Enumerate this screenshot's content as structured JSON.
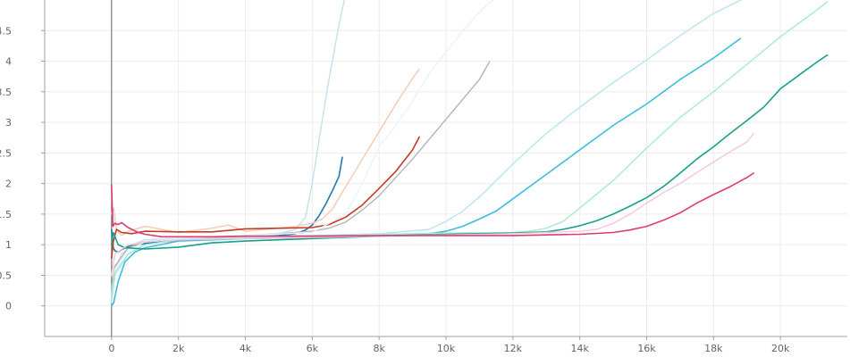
{
  "chart_data": {
    "type": "line",
    "title": "",
    "xlabel": "",
    "ylabel": "",
    "xlim": [
      -2000,
      22000
    ],
    "ylim": [
      -0.5,
      5.0
    ],
    "x_ticks": [
      {
        "value": 0,
        "label": "0"
      },
      {
        "value": 2000,
        "label": "2k"
      },
      {
        "value": 4000,
        "label": "4k"
      },
      {
        "value": 6000,
        "label": "6k"
      },
      {
        "value": 8000,
        "label": "8k"
      },
      {
        "value": 10000,
        "label": "10k"
      },
      {
        "value": 12000,
        "label": "12k"
      },
      {
        "value": 14000,
        "label": "14k"
      },
      {
        "value": 16000,
        "label": "16k"
      },
      {
        "value": 18000,
        "label": "18k"
      },
      {
        "value": 20000,
        "label": "20k"
      }
    ],
    "y_ticks": [
      {
        "value": 0,
        "label": "0"
      },
      {
        "value": 0.5,
        "label": "0.5"
      },
      {
        "value": 1,
        "label": "1"
      },
      {
        "value": 1.5,
        "label": "1.5"
      },
      {
        "value": 2,
        "label": "2"
      },
      {
        "value": 2.5,
        "label": "2.5"
      },
      {
        "value": 3,
        "label": "3"
      },
      {
        "value": 3.5,
        "label": "3.5"
      },
      {
        "value": 4,
        "label": "4"
      },
      {
        "value": 4.5,
        "label": "4.5"
      }
    ],
    "grid": true,
    "legend": "none",
    "series": [
      {
        "color": "#c6dff0",
        "width": 1.4,
        "x": [
          0,
          100,
          300,
          600,
          1000,
          2000,
          3000,
          4000,
          5000,
          5500,
          5800,
          6000,
          6200,
          6500,
          6800,
          7000
        ],
        "y": [
          0.2,
          0.6,
          0.85,
          1.0,
          1.08,
          1.1,
          1.12,
          1.14,
          1.18,
          1.25,
          1.45,
          2.0,
          2.7,
          3.7,
          4.6,
          5.1
        ]
      },
      {
        "color": "#1f78b4",
        "width": 1.6,
        "x": [
          0,
          50,
          100,
          200,
          300,
          500,
          1000,
          2000,
          3000,
          4000,
          5000,
          5500,
          5800,
          6000,
          6200,
          6400,
          6600,
          6800,
          6900
        ],
        "y": [
          1.25,
          0.95,
          0.9,
          0.88,
          0.92,
          0.97,
          1.02,
          1.07,
          1.09,
          1.12,
          1.15,
          1.18,
          1.24,
          1.32,
          1.47,
          1.66,
          1.88,
          2.12,
          2.43
        ]
      },
      {
        "color": "#f5c9b4",
        "width": 1.4,
        "x": [
          0,
          60,
          150,
          300,
          500,
          1000,
          2000,
          3000,
          3500,
          4000,
          5000,
          5500,
          6000,
          6300,
          6600,
          7000,
          7500,
          8000,
          8500,
          9000,
          9200
        ],
        "y": [
          1.5,
          1.6,
          1.25,
          1.15,
          1.22,
          1.3,
          1.2,
          1.27,
          1.32,
          1.22,
          1.27,
          1.3,
          1.35,
          1.42,
          1.58,
          1.95,
          2.4,
          2.85,
          3.3,
          3.72,
          3.87
        ]
      },
      {
        "color": "#c23b22",
        "width": 1.6,
        "x": [
          0,
          50,
          150,
          300,
          600,
          1000,
          2000,
          3000,
          4000,
          5000,
          6000,
          6500,
          7000,
          7500,
          8000,
          8500,
          9000,
          9200
        ],
        "y": [
          0.78,
          1.05,
          1.25,
          1.2,
          1.18,
          1.22,
          1.21,
          1.21,
          1.26,
          1.27,
          1.28,
          1.33,
          1.45,
          1.65,
          1.92,
          2.2,
          2.55,
          2.76
        ]
      },
      {
        "color": "#b3b3b3",
        "width": 1.4,
        "x": [
          0,
          100,
          500,
          1000,
          2000,
          3000,
          4000,
          5000,
          6000,
          6500,
          7000,
          7500,
          8000,
          9000,
          10000,
          11000,
          11300
        ],
        "y": [
          0.3,
          0.65,
          0.95,
          1.05,
          1.1,
          1.12,
          1.15,
          1.18,
          1.22,
          1.27,
          1.37,
          1.57,
          1.8,
          2.4,
          3.05,
          3.7,
          3.99
        ]
      },
      {
        "color": "#eaf3f8",
        "width": 1.4,
        "x": [
          0,
          100,
          500,
          1000,
          2000,
          4000,
          6000,
          7000,
          7500,
          8000,
          8500,
          9000,
          9500,
          10000,
          10500,
          11000,
          11500
        ],
        "y": [
          0.1,
          0.6,
          0.9,
          1.05,
          1.1,
          1.15,
          1.2,
          1.5,
          2.0,
          2.6,
          2.95,
          3.35,
          3.8,
          4.15,
          4.5,
          4.8,
          5.05
        ]
      },
      {
        "color": "#b9e4f4",
        "width": 1.4,
        "x": [
          0,
          100,
          500,
          1000,
          2000,
          4000,
          6000,
          8000,
          9500,
          10000,
          10500,
          11000,
          11500,
          12000,
          13000,
          14000,
          15000,
          16000,
          17000,
          18000,
          19000
        ],
        "y": [
          0.05,
          0.5,
          0.85,
          1.0,
          1.08,
          1.12,
          1.15,
          1.18,
          1.25,
          1.38,
          1.55,
          1.78,
          2.05,
          2.32,
          2.82,
          3.25,
          3.65,
          4.02,
          4.42,
          4.78,
          5.05
        ]
      },
      {
        "color": "#3cbde0",
        "width": 1.6,
        "x": [
          0,
          60,
          200,
          400,
          700,
          1000,
          2000,
          4000,
          6000,
          8000,
          9500,
          10000,
          10500,
          11000,
          11500,
          12000,
          13000,
          14000,
          15000,
          16000,
          17000,
          18000,
          18800
        ],
        "y": [
          0.0,
          0.05,
          0.4,
          0.72,
          0.88,
          0.95,
          1.06,
          1.1,
          1.12,
          1.15,
          1.18,
          1.22,
          1.3,
          1.42,
          1.55,
          1.75,
          2.15,
          2.55,
          2.95,
          3.3,
          3.7,
          4.05,
          4.37
        ]
      },
      {
        "color": "#a7ead0",
        "width": 1.4,
        "x": [
          0,
          100,
          500,
          1000,
          2000,
          4000,
          6000,
          8000,
          10000,
          12000,
          12500,
          13000,
          13500,
          14000,
          15000,
          16000,
          17000,
          18000,
          19000,
          20000,
          21000,
          21400
        ],
        "y": [
          0.15,
          0.55,
          0.85,
          1.0,
          1.08,
          1.12,
          1.15,
          1.17,
          1.19,
          1.2,
          1.22,
          1.27,
          1.38,
          1.6,
          2.05,
          2.58,
          3.08,
          3.5,
          3.95,
          4.4,
          4.8,
          4.97
        ]
      },
      {
        "color": "#17a08a",
        "width": 1.6,
        "x": [
          0,
          50,
          200,
          400,
          1000,
          2000,
          3000,
          4000,
          6000,
          8000,
          10000,
          12000,
          13000,
          13500,
          14000,
          14500,
          15000,
          15500,
          16000,
          16500,
          17000,
          17500,
          18000,
          18500,
          19000,
          19500,
          20000,
          20500,
          21000,
          21400
        ],
        "y": [
          1.0,
          1.2,
          1.0,
          0.95,
          0.93,
          0.96,
          1.03,
          1.06,
          1.1,
          1.14,
          1.17,
          1.19,
          1.21,
          1.25,
          1.31,
          1.39,
          1.5,
          1.63,
          1.77,
          1.95,
          2.17,
          2.4,
          2.6,
          2.82,
          3.03,
          3.25,
          3.55,
          3.75,
          3.95,
          4.1
        ]
      },
      {
        "color": "#f6c7d9",
        "width": 1.4,
        "x": [
          0,
          100,
          500,
          1000,
          2000,
          4000,
          6000,
          8000,
          10000,
          12000,
          13000,
          14000,
          14500,
          15000,
          15500,
          16000,
          16500,
          17000,
          17500,
          18000,
          18500,
          19000,
          19200
        ],
        "y": [
          0.5,
          0.85,
          1.0,
          1.05,
          1.08,
          1.1,
          1.12,
          1.14,
          1.16,
          1.18,
          1.2,
          1.22,
          1.25,
          1.35,
          1.5,
          1.68,
          1.85,
          2.0,
          2.18,
          2.35,
          2.52,
          2.68,
          2.82
        ]
      },
      {
        "color": "#dd3a7a",
        "width": 1.6,
        "x": [
          0,
          40,
          100,
          200,
          300,
          500,
          800,
          1000,
          1500,
          2000,
          3000,
          4000,
          6000,
          8000,
          10000,
          12000,
          14000,
          15000,
          15500,
          16000,
          16500,
          17000,
          17500,
          18000,
          18500,
          19000,
          19200
        ],
        "y": [
          1.98,
          1.3,
          1.35,
          1.33,
          1.36,
          1.28,
          1.2,
          1.17,
          1.13,
          1.13,
          1.13,
          1.14,
          1.14,
          1.15,
          1.15,
          1.15,
          1.17,
          1.2,
          1.24,
          1.3,
          1.4,
          1.52,
          1.68,
          1.82,
          1.95,
          2.1,
          2.17
        ]
      }
    ]
  }
}
